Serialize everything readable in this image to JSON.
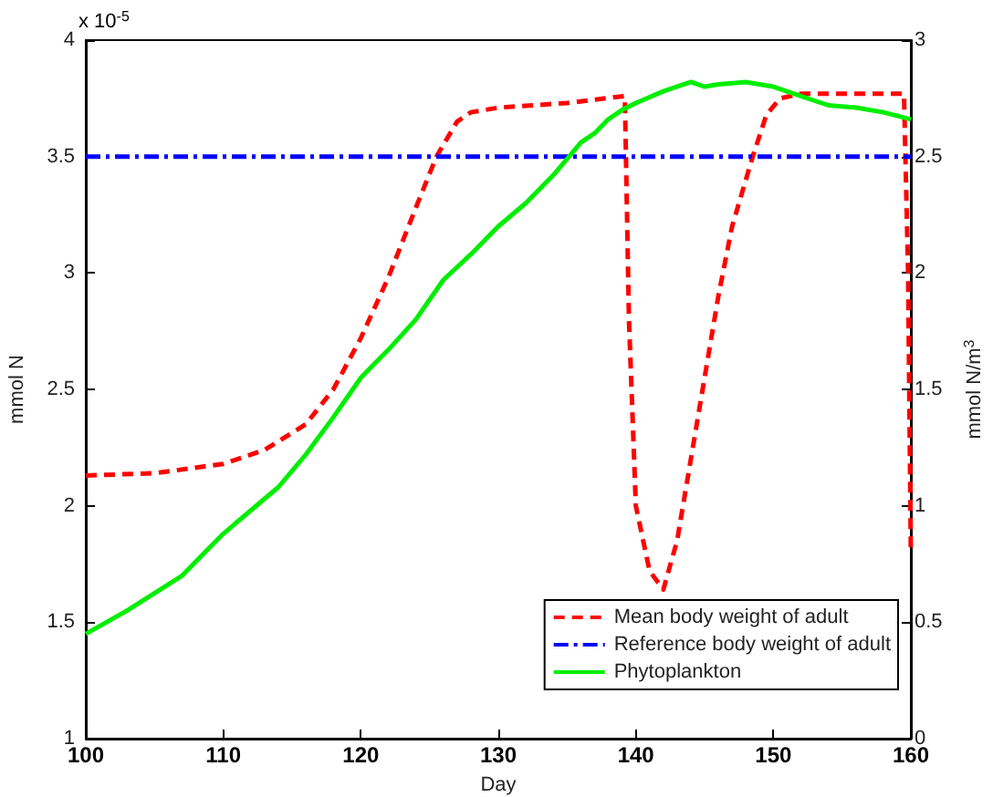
{
  "chart_data": {
    "type": "line",
    "xlabel": "Day",
    "ylabel": "mmol N",
    "y2label": "mmol N/m$^{3}$",
    "annotations": [
      "x 10$^{-5}$"
    ],
    "xlim": [
      100,
      160
    ],
    "xticks": [
      100,
      110,
      120,
      130,
      140,
      150,
      160
    ],
    "ylim": [
      1,
      4
    ],
    "yticks": [
      1,
      1.5,
      2,
      2.5,
      3,
      3.5,
      4
    ],
    "y2lim": [
      0,
      3
    ],
    "y2ticks": [
      0,
      0.5,
      1,
      1.5,
      2,
      2.5,
      3
    ],
    "grid": false,
    "legend": "bottom right",
    "marker": "none",
    "series": [
      {
        "name": "Mean body weight of adult",
        "color": "#ff0000",
        "line_style": "dashed",
        "x": [
          100,
          105,
          110,
          113,
          116,
          118,
          120,
          122,
          124,
          125.5,
          127,
          128,
          130,
          135,
          139.2,
          139.5,
          140,
          141,
          142,
          143,
          144,
          145,
          146,
          147,
          148.5,
          149.5,
          150.5,
          152,
          159.5,
          159.8,
          160
        ],
        "values": [
          2.13,
          2.14,
          2.18,
          2.24,
          2.35,
          2.5,
          2.72,
          2.98,
          3.28,
          3.5,
          3.65,
          3.69,
          3.71,
          3.73,
          3.76,
          2.8,
          2.0,
          1.72,
          1.64,
          1.85,
          2.2,
          2.55,
          2.9,
          3.2,
          3.5,
          3.68,
          3.75,
          3.77,
          3.77,
          3.0,
          1.8
        ]
      },
      {
        "name": "Reference body weight of adult",
        "color": "#0000ff",
        "line_style": "dashdot",
        "x": [
          100,
          160
        ],
        "values": [
          3.5,
          3.5
        ]
      },
      {
        "name": "Phytoplankton",
        "color": "#00ee00",
        "line_style": "solid",
        "axis": "y2",
        "x": [
          100,
          103,
          107,
          110,
          112,
          114,
          116,
          118,
          120,
          122,
          124,
          126,
          128,
          130,
          132,
          134,
          136,
          137,
          138,
          139,
          140,
          142,
          144,
          145,
          146,
          148,
          150,
          152,
          154,
          156,
          158,
          160
        ],
        "values": [
          0.45,
          0.55,
          0.7,
          0.88,
          0.98,
          1.08,
          1.22,
          1.38,
          1.55,
          1.67,
          1.8,
          1.97,
          2.08,
          2.2,
          2.3,
          2.42,
          2.56,
          2.6,
          2.66,
          2.7,
          2.73,
          2.78,
          2.82,
          2.8,
          2.81,
          2.82,
          2.8,
          2.76,
          2.72,
          2.71,
          2.69,
          2.66
        ]
      }
    ]
  }
}
